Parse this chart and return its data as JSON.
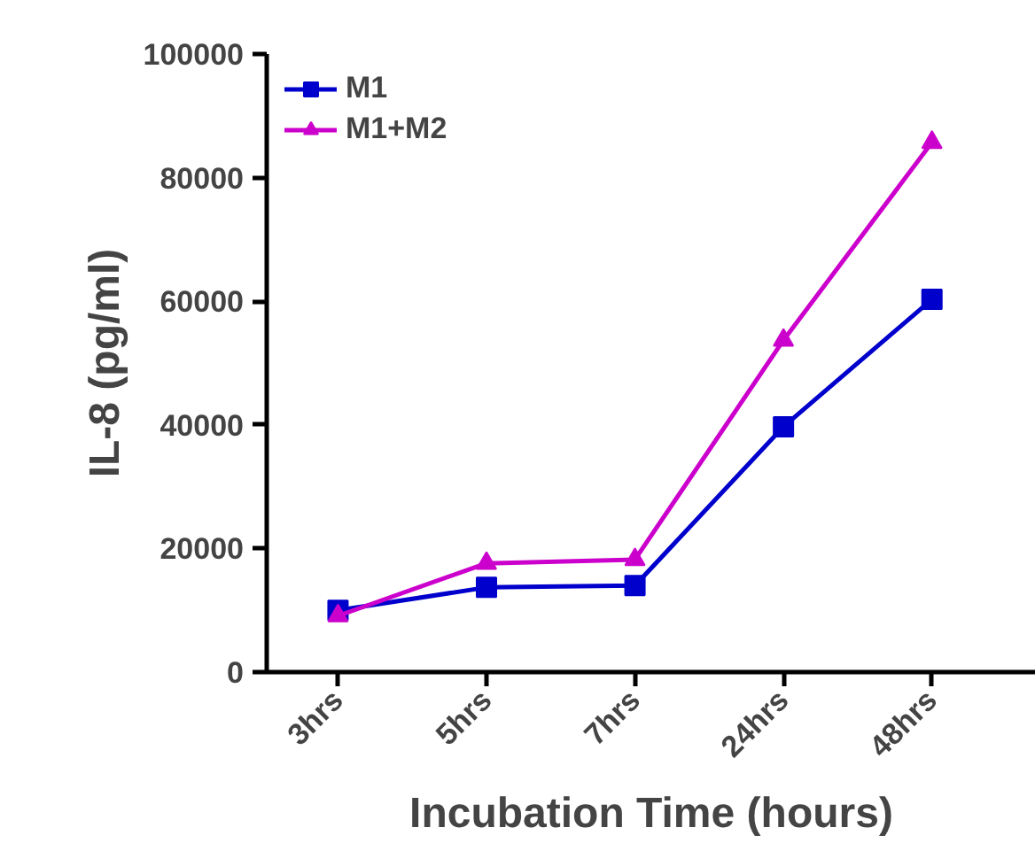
{
  "chart_data": {
    "type": "line",
    "xlabel": "Incubation Time (hours)",
    "ylabel": "IL-8 (pg/ml)",
    "categories": [
      "3hrs",
      "5hrs",
      "7hrs",
      "24hrs",
      "48hrs"
    ],
    "ylim": [
      0,
      100000
    ],
    "yticks": [
      0,
      20000,
      40000,
      60000,
      80000,
      100000
    ],
    "grid": false,
    "legend": "top left",
    "series": [
      {
        "name": "M1",
        "color": "#0000cc",
        "marker": "square",
        "values": [
          10000,
          13700,
          14000,
          39700,
          60300
        ]
      },
      {
        "name": "M1+M2",
        "color": "#cc00cc",
        "marker": "triangle",
        "values": [
          9100,
          17600,
          18200,
          53700,
          85700
        ]
      }
    ]
  }
}
